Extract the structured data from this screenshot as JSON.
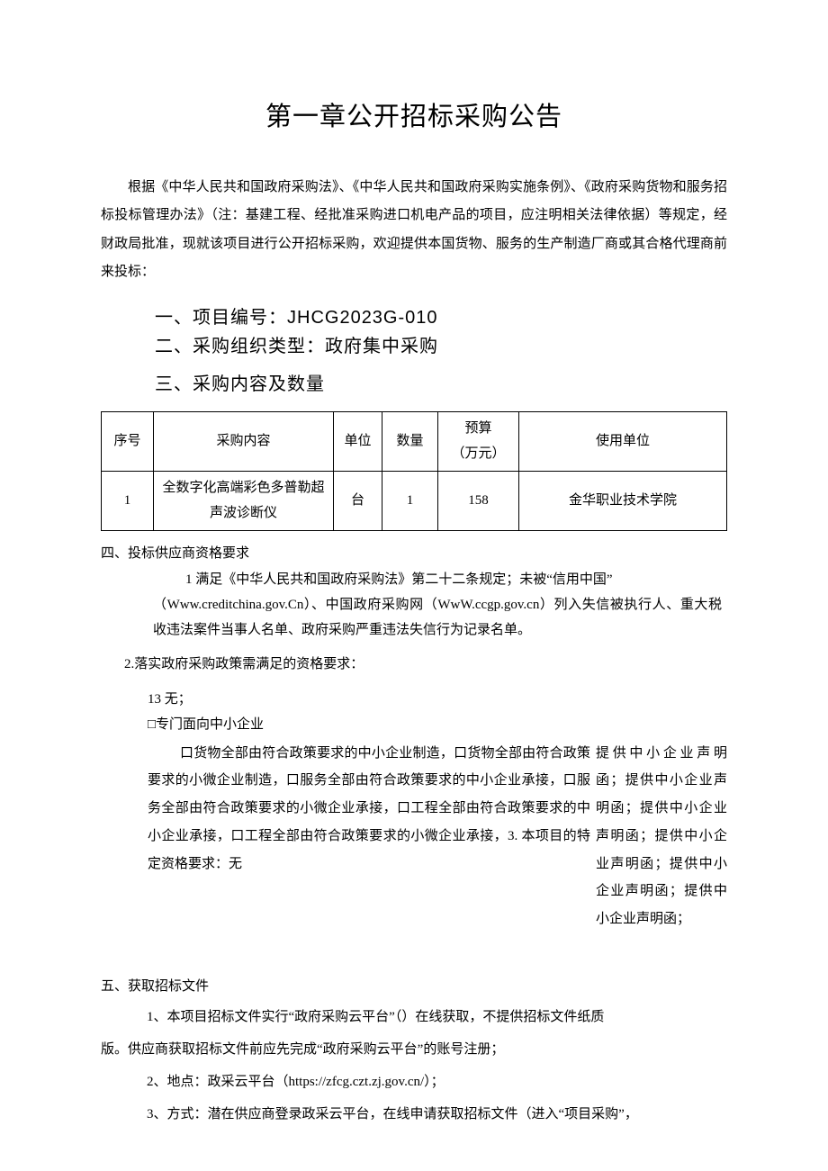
{
  "title": "第一章公开招标采购公告",
  "intro": "根据《中华人民共和国政府采购法》、《中华人民共和国政府采购实施条例》、《政府采购货物和服务招标投标管理办法》（注：基建工程、经批准采购进口机电产品的项目，应注明相关法律依据）等规定，经财政局批准，现就该项目进行公开招标采购，欢迎提供本国货物、服务的生产制造厂商或其合格代理商前来投标：",
  "section1": "一、项目编号：JHCG2023G-010",
  "section2": "二、采购组织类型：政府集中采购",
  "section3": "三、采购内容及数量",
  "table": {
    "headers": {
      "col1": "序号",
      "col2": "采购内容",
      "col3": "单位",
      "col4": "数量",
      "col5": "预算\n（万元）",
      "col6": "使用单位"
    },
    "row1": {
      "col1": "1",
      "col2": "全数字化高端彩色多普勒超声波诊断仪",
      "col3": "台",
      "col4": "1",
      "col5": "158",
      "col6": "金华职业技术学院"
    }
  },
  "section4": {
    "title": "四、投标供应商资格要求",
    "req1_a": "1 满足《中华人民共和国政府采购法》第二十二条规定；未被“信用中国”",
    "req1_b": "（Www.creditchina.gov.Cn）、中国政府采购网（WwW.ccgp.gov.cn）列入失信被执行人、重大税收违法案件当事人名单、政府采购严重违法失信行为记录名单。",
    "req2": "2.落实政府采购政策需满足的资格要求：",
    "cb1": "13 无；",
    "cb2": "□专门面向中小企业",
    "col_left": "口货物全部由符合政策要求的中小企业制造，口货物全部由符合政策要求的小微企业制造，口服务全部由符合政策要求的中小企业承接，口服务全部由符合政策要求的小微企业承接，口工程全部由符合政策要求的中小企业承接，口工程全部由符合政策要求的小微企业承接，3. 本项目的特定资格要求：无",
    "col_right": "提供中小企业声明函；提供中小企业声明函；提供中小企业声明函；提供中小企业声明函；提供中小企业声明函；提供中小企业声明函；"
  },
  "section5": {
    "title": "五、获取招标文件",
    "item1a": "1、本项目招标文件实行“政府采购云平台”（）在线获取，不提供招标文件纸质",
    "item1b": "版。供应商获取招标文件前应先完成“政府采购云平台”的账号注册；",
    "item2": "2、地点：政采云平台（https://zfcg.czt.zj.gov.cn/）；",
    "item3": "3、方式：潜在供应商登录政采云平台，在线申请获取招标文件（进入“项目采购”，"
  }
}
